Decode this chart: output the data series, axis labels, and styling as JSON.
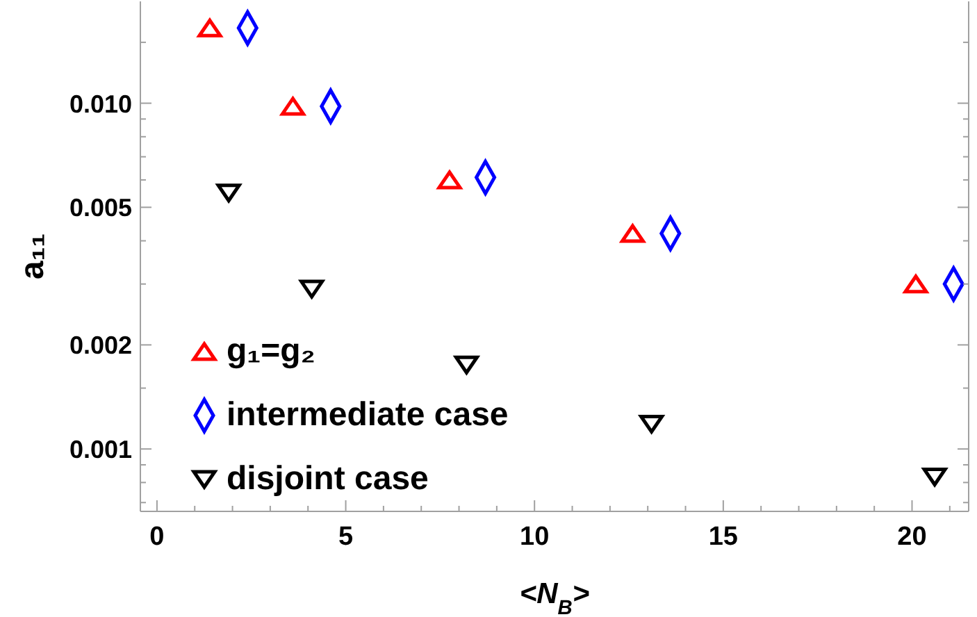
{
  "chart_data": {
    "type": "scatter",
    "xlabel": "<N$_{B}$>",
    "ylabel": "a₁₁",
    "xlim": [
      -0.44,
      21.5
    ],
    "ylim": [
      0.00066,
      0.0197
    ],
    "log": "y",
    "xticks": [
      0,
      {
        "value": 1,
        "label": null
      },
      {
        "value": 2,
        "label": null
      },
      {
        "value": 3,
        "label": null
      },
      {
        "value": 4,
        "label": null
      },
      5,
      {
        "value": 6,
        "label": null
      },
      {
        "value": 7,
        "label": null
      },
      {
        "value": 8,
        "label": null
      },
      {
        "value": 9,
        "label": null
      },
      10,
      {
        "value": 11,
        "label": null
      },
      {
        "value": 12,
        "label": null
      },
      {
        "value": 13,
        "label": null
      },
      {
        "value": 14,
        "label": null
      },
      15,
      {
        "value": 16,
        "label": null
      },
      {
        "value": 17,
        "label": null
      },
      {
        "value": 18,
        "label": null
      },
      {
        "value": 19,
        "label": null
      },
      20,
      {
        "value": 21,
        "label": null
      }
    ],
    "yticks": [
      {
        "value": 0.0007,
        "label": null
      },
      {
        "value": 0.0008,
        "label": null
      },
      {
        "value": 0.0009,
        "label": null
      },
      0.001,
      {
        "value": 0.0015,
        "label": null
      },
      0.002,
      {
        "value": 0.003,
        "label": null
      },
      {
        "value": 0.004,
        "label": null
      },
      0.005,
      {
        "value": 0.006,
        "label": null
      },
      {
        "value": 0.007,
        "label": null
      },
      {
        "value": 0.008,
        "label": null
      },
      {
        "value": 0.009,
        "label": null
      },
      {
        "value": 0.01,
        "label": "0.010"
      },
      {
        "value": 0.015,
        "label": null
      }
    ],
    "legend": "bottom left",
    "series": [
      {
        "name": "g₁=g₂",
        "color": "#ff0000",
        "marker": "triangle",
        "x": [
          1.4,
          3.6,
          7.75,
          12.6,
          20.1
        ],
        "values": [
          0.0165,
          0.0098,
          0.006,
          0.0042,
          0.003
        ]
      },
      {
        "name": "intermediate case",
        "color": "#0000ff",
        "marker": "diamond",
        "x": [
          2.4,
          4.6,
          8.7,
          13.6,
          21.1
        ],
        "values": [
          0.0165,
          0.0098,
          0.0061,
          0.0042,
          0.003
        ]
      },
      {
        "name": "disjoint case",
        "color": "#000000",
        "marker": "triangle-down",
        "x": [
          1.9,
          4.1,
          8.2,
          13.1,
          20.6
        ],
        "values": [
          0.0055,
          0.0029,
          0.00175,
          0.00118,
          0.00083
        ]
      }
    ]
  }
}
